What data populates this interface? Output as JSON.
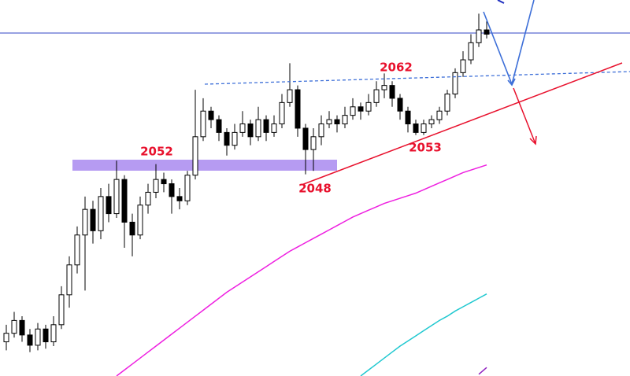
{
  "chart_data": {
    "type": "candlestick",
    "ylim": [
      2028,
      2072
    ],
    "up_color": "#ffffff",
    "down_color": "#000000",
    "outline_color": "#000000",
    "candles": [
      [
        2032.0,
        2034.0,
        2031.0,
        2033.0
      ],
      [
        2033.0,
        2035.5,
        2032.5,
        2034.5
      ],
      [
        2034.5,
        2035.0,
        2032.0,
        2032.8
      ],
      [
        2032.8,
        2033.5,
        2030.8,
        2031.6
      ],
      [
        2031.6,
        2034.2,
        2031.0,
        2033.5
      ],
      [
        2033.5,
        2034.0,
        2031.2,
        2032.0
      ],
      [
        2032.0,
        2035.0,
        2031.5,
        2034.0
      ],
      [
        2034.0,
        2038.5,
        2033.5,
        2037.5
      ],
      [
        2037.5,
        2042.0,
        2036.0,
        2041.0
      ],
      [
        2041.0,
        2045.5,
        2040.0,
        2044.5
      ],
      [
        2044.5,
        2049.0,
        2038.0,
        2047.5
      ],
      [
        2047.5,
        2048.5,
        2043.5,
        2045.0
      ],
      [
        2045.0,
        2050.0,
        2044.0,
        2049.0
      ],
      [
        2049.0,
        2050.5,
        2046.0,
        2047.0
      ],
      [
        2047.0,
        2053.2,
        2046.5,
        2051.0
      ],
      [
        2051.0,
        2051.5,
        2043.0,
        2046.0
      ],
      [
        2046.0,
        2047.0,
        2042.0,
        2044.5
      ],
      [
        2044.5,
        2049.0,
        2044.0,
        2048.0
      ],
      [
        2048.0,
        2050.5,
        2047.0,
        2049.5
      ],
      [
        2049.5,
        2052.8,
        2048.8,
        2051.0
      ],
      [
        2051.0,
        2051.8,
        2049.5,
        2050.5
      ],
      [
        2050.5,
        2051.0,
        2047.0,
        2049.0
      ],
      [
        2049.0,
        2050.0,
        2047.5,
        2048.5
      ],
      [
        2048.5,
        2052.0,
        2048.0,
        2051.5
      ],
      [
        2051.5,
        2061.5,
        2051.0,
        2056.0
      ],
      [
        2056.0,
        2060.5,
        2055.5,
        2059.0
      ],
      [
        2059.0,
        2059.5,
        2057.0,
        2058.0
      ],
      [
        2058.0,
        2058.5,
        2055.5,
        2056.5
      ],
      [
        2056.5,
        2057.0,
        2053.8,
        2055.0
      ],
      [
        2055.0,
        2057.5,
        2054.5,
        2056.5
      ],
      [
        2056.5,
        2059.0,
        2056.0,
        2057.5
      ],
      [
        2057.5,
        2058.0,
        2055.0,
        2056.0
      ],
      [
        2056.0,
        2059.5,
        2055.5,
        2058.0
      ],
      [
        2058.0,
        2058.5,
        2055.5,
        2056.5
      ],
      [
        2056.5,
        2058.5,
        2056.0,
        2057.5
      ],
      [
        2057.5,
        2061.0,
        2057.0,
        2060.0
      ],
      [
        2060.0,
        2064.6,
        2059.5,
        2061.5
      ],
      [
        2061.5,
        2062.0,
        2056.0,
        2057.0
      ],
      [
        2057.0,
        2057.5,
        2051.6,
        2054.5
      ],
      [
        2054.5,
        2057.0,
        2052.0,
        2056.0
      ],
      [
        2056.0,
        2058.5,
        2055.0,
        2057.5
      ],
      [
        2057.5,
        2059.0,
        2057.0,
        2058.0
      ],
      [
        2058.0,
        2058.5,
        2056.5,
        2057.5
      ],
      [
        2057.5,
        2059.5,
        2057.0,
        2058.5
      ],
      [
        2058.5,
        2060.5,
        2058.0,
        2059.5
      ],
      [
        2059.5,
        2060.0,
        2058.0,
        2059.0
      ],
      [
        2059.0,
        2061.0,
        2058.5,
        2060.0
      ],
      [
        2060.0,
        2062.5,
        2059.5,
        2061.5
      ],
      [
        2061.5,
        2063.4,
        2060.5,
        2062.0
      ],
      [
        2062.0,
        2062.5,
        2059.5,
        2060.5
      ],
      [
        2060.5,
        2061.0,
        2058.0,
        2059.0
      ],
      [
        2059.0,
        2059.5,
        2056.5,
        2057.5
      ],
      [
        2057.5,
        2058.0,
        2056.2,
        2056.5
      ],
      [
        2056.5,
        2058.0,
        2056.2,
        2057.5
      ],
      [
        2057.5,
        2058.5,
        2057.0,
        2058.0
      ],
      [
        2058.0,
        2059.5,
        2057.5,
        2059.0
      ],
      [
        2059.0,
        2061.5,
        2058.5,
        2061.0
      ],
      [
        2061.0,
        2064.0,
        2060.5,
        2063.5
      ],
      [
        2063.5,
        2066.0,
        2063.0,
        2065.0
      ],
      [
        2065.0,
        2068.0,
        2064.5,
        2067.0
      ],
      [
        2067.0,
        2070.4,
        2066.5,
        2068.5
      ],
      [
        2068.5,
        2069.5,
        2067.5,
        2068.0
      ]
    ],
    "series": [
      {
        "color": "#ee1fe0",
        "values": [
          null,
          null,
          null,
          null,
          null,
          null,
          null,
          null,
          null,
          null,
          null,
          null,
          null,
          null,
          2028.0,
          2028.7,
          2029.4,
          2030.1,
          2030.8,
          2031.5,
          2032.2,
          2032.9,
          2033.6,
          2034.3,
          2035.0,
          2035.7,
          2036.4,
          2037.1,
          2037.8,
          2038.4,
          2039.0,
          2039.6,
          2040.2,
          2040.8,
          2041.4,
          2042.0,
          2042.6,
          2043.1,
          2043.6,
          2044.1,
          2044.6,
          2045.1,
          2045.6,
          2046.1,
          2046.6,
          2047.0,
          2047.4,
          2047.8,
          2048.2,
          2048.5,
          2048.8,
          2049.1,
          2049.4,
          2049.8,
          2050.2,
          2050.6,
          2051.0,
          2051.4,
          2051.8,
          2052.1,
          2052.4,
          2052.7
        ]
      },
      {
        "color": "#20c8d0",
        "values": [
          null,
          null,
          null,
          null,
          null,
          null,
          null,
          null,
          null,
          null,
          null,
          null,
          null,
          null,
          null,
          null,
          null,
          null,
          null,
          null,
          null,
          null,
          null,
          null,
          null,
          null,
          null,
          null,
          null,
          null,
          null,
          null,
          null,
          null,
          null,
          null,
          null,
          null,
          null,
          null,
          null,
          null,
          null,
          null,
          null,
          2028.0,
          2028.7,
          2029.4,
          2030.1,
          2030.8,
          2031.5,
          2032.1,
          2032.7,
          2033.3,
          2033.9,
          2034.5,
          2035.0,
          2035.6,
          2036.1,
          2036.6,
          2037.1,
          2037.6
        ]
      },
      {
        "color": "#9020c0",
        "values": [
          null,
          null,
          null,
          null,
          null,
          null,
          null,
          null,
          null,
          null,
          null,
          null,
          null,
          null,
          null,
          null,
          null,
          null,
          null,
          null,
          null,
          null,
          null,
          null,
          null,
          null,
          null,
          null,
          null,
          null,
          null,
          null,
          null,
          null,
          null,
          null,
          null,
          null,
          null,
          null,
          null,
          null,
          null,
          null,
          null,
          null,
          null,
          null,
          null,
          null,
          null,
          null,
          null,
          null,
          null,
          null,
          null,
          null,
          null,
          null,
          2028.2,
          2029.0
        ]
      }
    ],
    "annotations": [
      "2052",
      "2062",
      "2048",
      "2053"
    ]
  }
}
